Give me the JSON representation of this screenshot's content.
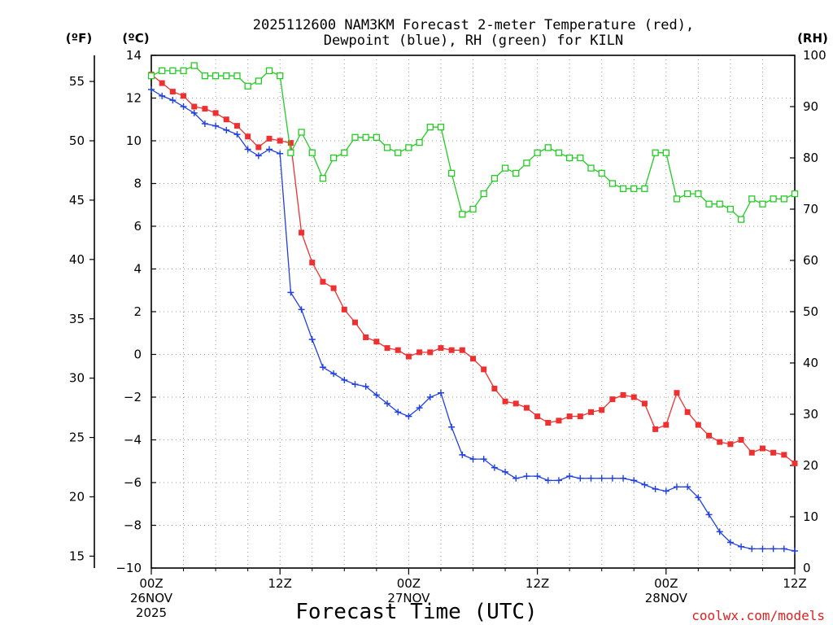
{
  "chart_data": {
    "type": "line",
    "title_line1": "2025112600 NAM3KM Forecast 2-meter Temperature (red),",
    "title_line2": "Dewpoint (blue), RH (green) for KILN",
    "xlabel": "Forecast Time (UTC)",
    "credit": "coolwx.com/models",
    "unit_f": "(ºF)",
    "unit_c": "(ºC)",
    "unit_rh": "(RH)",
    "x_range_hours": [
      0,
      60
    ],
    "y_c_range": [
      -10,
      14
    ],
    "y_rh_range": [
      0,
      100
    ],
    "y_f_range": [
      14,
      57.2
    ],
    "grid": true,
    "x_ticks": [
      {
        "hour": 0,
        "label": "00Z",
        "date": "26NOV",
        "year": "2025"
      },
      {
        "hour": 12,
        "label": "12Z",
        "date": "",
        "year": ""
      },
      {
        "hour": 24,
        "label": "00Z",
        "date": "27NOV",
        "year": ""
      },
      {
        "hour": 36,
        "label": "12Z",
        "date": "",
        "year": ""
      },
      {
        "hour": 48,
        "label": "00Z",
        "date": "28NOV",
        "year": ""
      },
      {
        "hour": 60,
        "label": "12Z",
        "date": "",
        "year": ""
      }
    ],
    "y_c_ticks": [
      {
        "v": 14,
        "label": "14"
      },
      {
        "v": 12,
        "label": "12"
      },
      {
        "v": 10,
        "label": "10"
      },
      {
        "v": 8,
        "label": "8"
      },
      {
        "v": 6,
        "label": "6"
      },
      {
        "v": 4,
        "label": "4"
      },
      {
        "v": 2,
        "label": "2"
      },
      {
        "v": 0,
        "label": "0"
      },
      {
        "v": -2,
        "label": "−2"
      },
      {
        "v": -4,
        "label": "−4"
      },
      {
        "v": -6,
        "label": "−6"
      },
      {
        "v": -8,
        "label": "−8"
      },
      {
        "v": -10,
        "label": "−10"
      }
    ],
    "y_f_ticks": [
      {
        "v": 55,
        "label": "55"
      },
      {
        "v": 50,
        "label": "50"
      },
      {
        "v": 45,
        "label": "45"
      },
      {
        "v": 40,
        "label": "40"
      },
      {
        "v": 35,
        "label": "35"
      },
      {
        "v": 30,
        "label": "30"
      },
      {
        "v": 25,
        "label": "25"
      },
      {
        "v": 20,
        "label": "20"
      },
      {
        "v": 15,
        "label": "15"
      }
    ],
    "y_rh_ticks": [
      {
        "v": 100,
        "label": "100"
      },
      {
        "v": 90,
        "label": "90"
      },
      {
        "v": 80,
        "label": "80"
      },
      {
        "v": 70,
        "label": "70"
      },
      {
        "v": 60,
        "label": "60"
      },
      {
        "v": 50,
        "label": "50"
      },
      {
        "v": 40,
        "label": "40"
      },
      {
        "v": 30,
        "label": "30"
      },
      {
        "v": 20,
        "label": "20"
      },
      {
        "v": 10,
        "label": "10"
      },
      {
        "v": 0,
        "label": "0"
      }
    ],
    "series": [
      {
        "name": "Temperature",
        "unit": "C",
        "color": "#ee3030",
        "marker": "filled-square",
        "x": [
          0,
          1,
          2,
          3,
          4,
          5,
          6,
          7,
          8,
          9,
          10,
          11,
          12,
          13,
          14,
          15,
          16,
          17,
          18,
          19,
          20,
          21,
          22,
          23,
          24,
          25,
          26,
          27,
          28,
          29,
          30,
          31,
          32,
          33,
          34,
          35,
          36,
          37,
          38,
          39,
          40,
          41,
          42,
          43,
          44,
          45,
          46,
          47,
          48,
          49,
          50,
          51,
          52,
          53,
          54,
          55,
          56,
          57,
          58,
          59,
          60
        ],
        "values": [
          13.1,
          12.7,
          12.3,
          12.1,
          11.6,
          11.5,
          11.3,
          11.0,
          10.7,
          10.2,
          9.7,
          10.1,
          10.0,
          9.9,
          5.7,
          4.3,
          3.4,
          3.1,
          2.1,
          1.5,
          0.8,
          0.6,
          0.3,
          0.2,
          -0.1,
          0.1,
          0.1,
          0.3,
          0.2,
          0.2,
          -0.2,
          -0.7,
          -1.6,
          -2.2,
          -2.3,
          -2.5,
          -2.9,
          -3.2,
          -3.1,
          -2.9,
          -2.9,
          -2.7,
          -2.6,
          -2.1,
          -1.9,
          -2.0,
          -2.3,
          -3.5,
          -3.3,
          -1.8,
          -2.7,
          -3.3,
          -3.8,
          -4.1,
          -4.2,
          -4.0,
          -4.6,
          -4.4,
          -4.6,
          -4.7,
          -5.1
        ]
      },
      {
        "name": "Dewpoint",
        "unit": "C",
        "color": "#2040e0",
        "marker": "plus",
        "x": [
          0,
          1,
          2,
          3,
          4,
          5,
          6,
          7,
          8,
          9,
          10,
          11,
          12,
          13,
          14,
          15,
          16,
          17,
          18,
          19,
          20,
          21,
          22,
          23,
          24,
          25,
          26,
          27,
          28,
          29,
          30,
          31,
          32,
          33,
          34,
          35,
          36,
          37,
          38,
          39,
          40,
          41,
          42,
          43,
          44,
          45,
          46,
          47,
          48,
          49,
          50,
          51,
          52,
          53,
          54,
          55,
          56,
          57,
          58,
          59,
          60
        ],
        "values": [
          12.4,
          12.1,
          11.9,
          11.6,
          11.3,
          10.8,
          10.7,
          10.5,
          10.3,
          9.6,
          9.3,
          9.6,
          9.4,
          2.9,
          2.1,
          0.7,
          -0.6,
          -0.9,
          -1.2,
          -1.4,
          -1.5,
          -1.9,
          -2.3,
          -2.7,
          -2.9,
          -2.5,
          -2.0,
          -1.8,
          -3.4,
          -4.7,
          -4.9,
          -4.9,
          -5.3,
          -5.5,
          -5.8,
          -5.7,
          -5.7,
          -5.9,
          -5.9,
          -5.7,
          -5.8,
          -5.8,
          -5.8,
          -5.8,
          -5.8,
          -5.9,
          -6.1,
          -6.3,
          -6.4,
          -6.2,
          -6.2,
          -6.7,
          -7.5,
          -8.3,
          -8.8,
          -9.0,
          -9.1,
          -9.1,
          -9.1,
          -9.1,
          -9.2
        ]
      },
      {
        "name": "RH",
        "unit": "%",
        "color": "#22cc22",
        "marker": "open-square",
        "x": [
          0,
          1,
          2,
          3,
          4,
          5,
          6,
          7,
          8,
          9,
          10,
          11,
          12,
          13,
          14,
          15,
          16,
          17,
          18,
          19,
          20,
          21,
          22,
          23,
          24,
          25,
          26,
          27,
          28,
          29,
          30,
          31,
          32,
          33,
          34,
          35,
          36,
          37,
          38,
          39,
          40,
          41,
          42,
          43,
          44,
          45,
          46,
          47,
          48,
          49,
          50,
          51,
          52,
          53,
          54,
          55,
          56,
          57,
          58,
          59,
          60
        ],
        "values": [
          96,
          97,
          97,
          97,
          98,
          96,
          96,
          96,
          96,
          94,
          95,
          97,
          96,
          81,
          85,
          81,
          76,
          80,
          81,
          84,
          84,
          84,
          82,
          81,
          82,
          83,
          86,
          86,
          77,
          69,
          70,
          73,
          76,
          78,
          77,
          79,
          81,
          82,
          81,
          80,
          80,
          78,
          77,
          75,
          74,
          74,
          74,
          81,
          81,
          72,
          73,
          73,
          71,
          71,
          70,
          68,
          72,
          71,
          72,
          72,
          73
        ]
      }
    ]
  }
}
